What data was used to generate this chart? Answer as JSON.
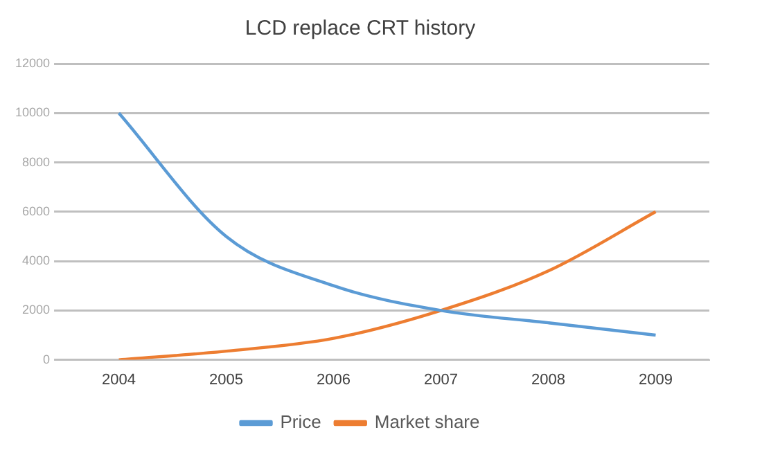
{
  "chart_data": {
    "type": "line",
    "title": "LCD replace CRT history",
    "categories": [
      "2004",
      "2005",
      "2006",
      "2007",
      "2008",
      "2009"
    ],
    "series": [
      {
        "name": "Price",
        "color": "#5b9bd5",
        "values": [
          10000,
          5000,
          3000,
          2000,
          1500,
          1000
        ]
      },
      {
        "name": "Market share",
        "color": "#ed7d31",
        "values": [
          0,
          350,
          870,
          2000,
          3600,
          6000
        ]
      }
    ],
    "ylim": [
      0,
      12000
    ],
    "yticks": [
      0,
      2000,
      4000,
      6000,
      8000,
      10000,
      12000
    ],
    "grid": "y",
    "legend": "bottom",
    "marker": "none",
    "line_style": "solid"
  }
}
